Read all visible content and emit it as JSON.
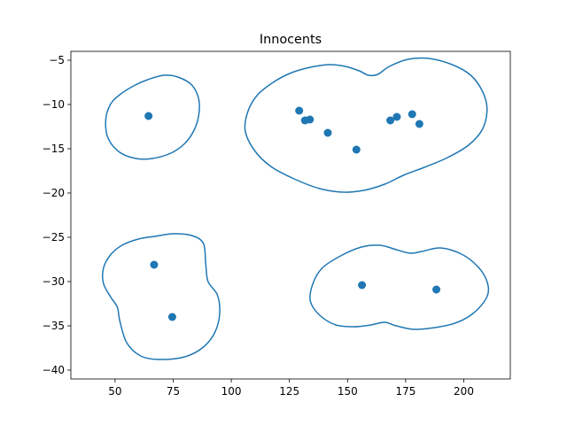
{
  "chart_data": {
    "type": "scatter",
    "title": "Innocents",
    "xlabel": "",
    "ylabel": "",
    "xlim": [
      31,
      220
    ],
    "ylim": [
      -41,
      -4
    ],
    "xticks": [
      50,
      75,
      100,
      125,
      150,
      175,
      200
    ],
    "yticks": [
      -5,
      -10,
      -15,
      -20,
      -25,
      -30,
      -35,
      -40
    ],
    "grid": false,
    "colors": {
      "marker": "#1f77b4",
      "outline": "#1f77b4",
      "axes": "#000000"
    },
    "points": [
      {
        "x": 64.4,
        "y": -11.3
      },
      {
        "x": 129.2,
        "y": -10.7
      },
      {
        "x": 131.7,
        "y": -11.8
      },
      {
        "x": 133.8,
        "y": -11.7
      },
      {
        "x": 141.5,
        "y": -13.2
      },
      {
        "x": 153.8,
        "y": -15.1
      },
      {
        "x": 168.4,
        "y": -11.8
      },
      {
        "x": 171.2,
        "y": -11.4
      },
      {
        "x": 177.8,
        "y": -11.1
      },
      {
        "x": 180.9,
        "y": -12.2
      },
      {
        "x": 66.8,
        "y": -28.1
      },
      {
        "x": 74.6,
        "y": -34.0
      },
      {
        "x": 156.2,
        "y": -30.4
      },
      {
        "x": 188.2,
        "y": -30.9
      }
    ],
    "outlines": [
      [
        [
          59,
          -16.1
        ],
        [
          52,
          -15.4
        ],
        [
          47,
          -13.8
        ],
        [
          46,
          -11.7
        ],
        [
          48,
          -10.0
        ],
        [
          52,
          -8.9
        ],
        [
          58,
          -7.9
        ],
        [
          64,
          -7.2
        ],
        [
          71,
          -6.7
        ],
        [
          77,
          -6.9
        ],
        [
          83,
          -7.8
        ],
        [
          86,
          -9.4
        ],
        [
          86,
          -11.2
        ],
        [
          84,
          -12.9
        ],
        [
          80,
          -14.4
        ],
        [
          74,
          -15.5
        ],
        [
          66,
          -16.1
        ]
      ],
      [
        [
          148,
          -19.9
        ],
        [
          138,
          -19.5
        ],
        [
          127,
          -18.4
        ],
        [
          117,
          -17.0
        ],
        [
          110,
          -15.2
        ],
        [
          106,
          -13.0
        ],
        [
          107,
          -10.9
        ],
        [
          111,
          -9.0
        ],
        [
          118,
          -7.5
        ],
        [
          126,
          -6.4
        ],
        [
          134,
          -5.8
        ],
        [
          142,
          -5.5
        ],
        [
          149,
          -5.7
        ],
        [
          155,
          -6.2
        ],
        [
          159,
          -6.7
        ],
        [
          163,
          -6.6
        ],
        [
          168,
          -5.7
        ],
        [
          176,
          -4.9
        ],
        [
          185,
          -4.8
        ],
        [
          195,
          -5.5
        ],
        [
          203,
          -6.7
        ],
        [
          208,
          -8.5
        ],
        [
          210,
          -10.5
        ],
        [
          208,
          -12.8
        ],
        [
          202,
          -14.6
        ],
        [
          193,
          -16.0
        ],
        [
          183,
          -17.1
        ],
        [
          174,
          -18.0
        ],
        [
          166,
          -19.0
        ],
        [
          157,
          -19.7
        ]
      ],
      [
        [
          69,
          -38.8
        ],
        [
          61,
          -38.4
        ],
        [
          55,
          -36.9
        ],
        [
          52,
          -34.4
        ],
        [
          51,
          -32.9
        ],
        [
          48,
          -31.7
        ],
        [
          45,
          -30.2
        ],
        [
          45,
          -28.5
        ],
        [
          48,
          -27.0
        ],
        [
          53,
          -25.9
        ],
        [
          60,
          -25.2
        ],
        [
          67,
          -24.9
        ],
        [
          75,
          -24.6
        ],
        [
          83,
          -24.8
        ],
        [
          88,
          -25.7
        ],
        [
          89,
          -28.0
        ],
        [
          90,
          -30.0
        ],
        [
          94,
          -31.5
        ],
        [
          95,
          -33.6
        ],
        [
          93,
          -35.7
        ],
        [
          88,
          -37.4
        ],
        [
          80,
          -38.5
        ]
      ],
      [
        [
          180,
          -35.4
        ],
        [
          171,
          -35.0
        ],
        [
          166,
          -34.6
        ],
        [
          160,
          -34.9
        ],
        [
          153,
          -35.1
        ],
        [
          145,
          -34.9
        ],
        [
          138,
          -33.8
        ],
        [
          134,
          -32.2
        ],
        [
          135,
          -30.3
        ],
        [
          139,
          -28.5
        ],
        [
          147,
          -27.1
        ],
        [
          156,
          -26.1
        ],
        [
          164,
          -25.9
        ],
        [
          171,
          -26.4
        ],
        [
          177,
          -26.8
        ],
        [
          182,
          -26.6
        ],
        [
          190,
          -26.2
        ],
        [
          199,
          -26.9
        ],
        [
          206,
          -28.3
        ],
        [
          210,
          -30.0
        ],
        [
          210,
          -31.7
        ],
        [
          204,
          -33.6
        ],
        [
          195,
          -34.8
        ]
      ]
    ]
  }
}
